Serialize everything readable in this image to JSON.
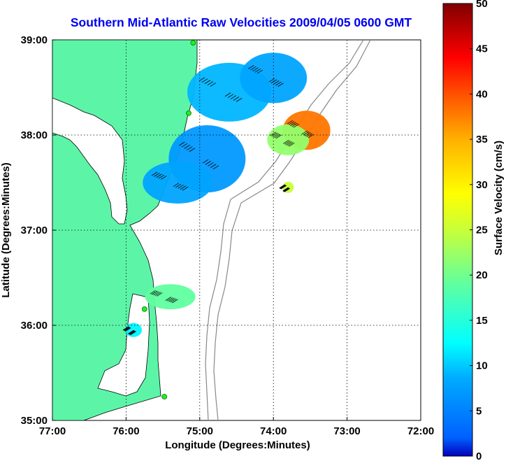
{
  "chart_data": {
    "type": "heatmap",
    "title": "Southern Mid-Atlantic Raw Velocities 2009/04/05 0600 GMT",
    "xlabel": "Longitude (Degrees:Minutes)",
    "ylabel": "Latitude (Degrees:Minutes)",
    "x_ticks": [
      "77:00",
      "76:00",
      "75:00",
      "74:00",
      "73:00",
      "72:00"
    ],
    "x_tick_values": [
      -77,
      -76,
      -75,
      -74,
      -73,
      -72
    ],
    "y_ticks": [
      "35:00",
      "36:00",
      "37:00",
      "38:00",
      "39:00"
    ],
    "y_tick_values": [
      35,
      36,
      37,
      38,
      39
    ],
    "xlim": [
      -77,
      -72
    ],
    "ylim": [
      35,
      39
    ],
    "grid": true,
    "colorbar": {
      "label": "Surface Velocity (cm/s)",
      "range": [
        0,
        50
      ],
      "ticks": [
        "0",
        "5",
        "10",
        "15",
        "20",
        "25",
        "30",
        "35",
        "40",
        "45",
        "50"
      ],
      "tick_values": [
        0,
        5,
        10,
        15,
        20,
        25,
        30,
        35,
        40,
        45,
        50
      ]
    },
    "stations": [
      {
        "lon": -75.09,
        "lat": 38.97
      },
      {
        "lon": -75.15,
        "lat": 38.23
      },
      {
        "lon": -75.75,
        "lat": 36.17
      },
      {
        "lon": -75.48,
        "lat": 35.25
      }
    ],
    "velocity_regions": [
      {
        "lon": -74.6,
        "lat": 38.45,
        "speed": 9
      },
      {
        "lon": -74.9,
        "lat": 37.75,
        "speed": 7
      },
      {
        "lon": -75.3,
        "lat": 37.5,
        "speed": 8
      },
      {
        "lon": -74.0,
        "lat": 38.6,
        "speed": 8
      },
      {
        "lon": -73.55,
        "lat": 38.05,
        "speed": 38
      },
      {
        "lon": -73.8,
        "lat": 37.95,
        "speed": 22
      },
      {
        "lon": -73.8,
        "lat": 37.45,
        "speed": 25
      },
      {
        "lon": -75.4,
        "lat": 36.3,
        "speed": 19
      },
      {
        "lon": -75.9,
        "lat": 35.95,
        "speed": 12
      }
    ]
  }
}
